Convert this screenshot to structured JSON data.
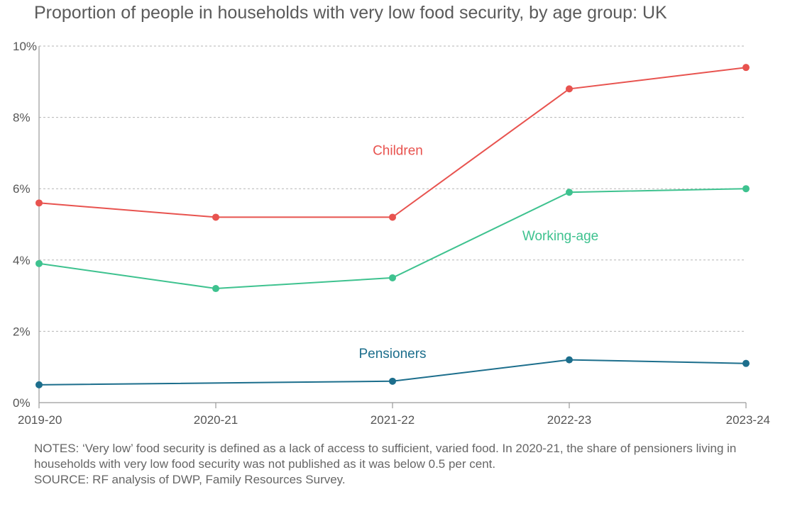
{
  "chart_data": {
    "type": "line",
    "title": "Proportion of people in households with very low food security, by age group: UK",
    "categories": [
      "2019-20",
      "2020-21",
      "2021-22",
      "2022-23",
      "2023-24"
    ],
    "ylim": [
      0,
      10
    ],
    "y_ticks": [
      0,
      2,
      4,
      6,
      8,
      10
    ],
    "y_tick_labels": [
      "0%",
      "2%",
      "4%",
      "6%",
      "8%",
      "10%"
    ],
    "grid": true,
    "series": [
      {
        "name": "Children",
        "color": "#e8534f",
        "values": [
          5.6,
          5.2,
          5.2,
          8.8,
          9.4
        ]
      },
      {
        "name": "Working-age",
        "color": "#3ec28f",
        "values": [
          3.9,
          3.2,
          3.5,
          5.9,
          6.0
        ]
      },
      {
        "name": "Pensioners",
        "color": "#1c6e8c",
        "values": [
          0.5,
          null,
          0.6,
          1.2,
          1.1
        ]
      }
    ]
  },
  "notes": {
    "notes_text": "NOTES: ‘Very low’ food security is defined as a lack of access to sufficient, varied food. In 2020-21, the share of pensioners living in households with very low food security was not published as it was below 0.5 per cent.",
    "source_text": "SOURCE: RF analysis of DWP, Family Resources Survey."
  }
}
